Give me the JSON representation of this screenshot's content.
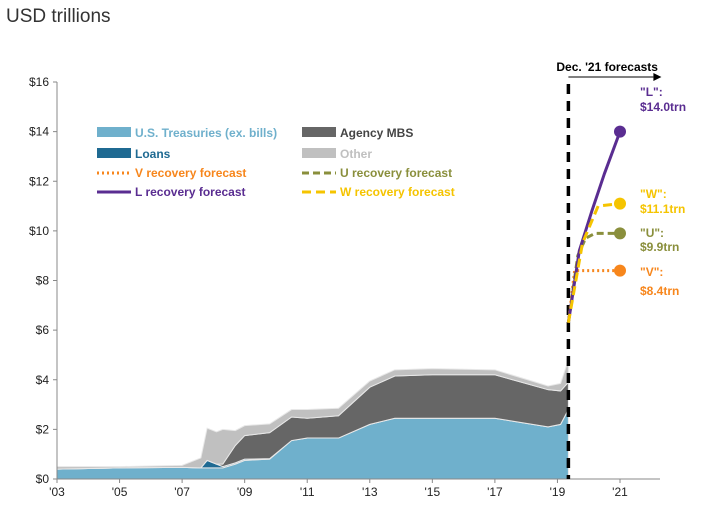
{
  "chart_data": {
    "type": "area",
    "title": "",
    "ylabel": "USD trillions",
    "xlabel": "",
    "ylim": [
      0,
      16
    ],
    "xlim": [
      2003,
      2021
    ],
    "yticks": [
      0,
      2,
      4,
      6,
      8,
      10,
      12,
      14,
      16
    ],
    "ytick_labels": [
      "$0",
      "$2",
      "$4",
      "$6",
      "$8",
      "$10",
      "$12",
      "$14",
      "$16"
    ],
    "xticks": [
      2003,
      2005,
      2007,
      2009,
      2011,
      2013,
      2015,
      2017,
      2019,
      2021
    ],
    "xtick_labels": [
      "'03",
      "'05",
      "'07",
      "'09",
      "'11",
      "'13",
      "'15",
      "'17",
      "'19",
      "'21"
    ],
    "grid": false,
    "legend_placement": "top-left",
    "x": [
      2003,
      2005,
      2007,
      2007.6,
      2007.8,
      2008.1,
      2008.3,
      2008.7,
      2009,
      2009.8,
      2010.5,
      2011,
      2012,
      2013,
      2013.8,
      2015,
      2017,
      2018.7,
      2019.1,
      2019.35
    ],
    "stacked_series": [
      {
        "name": "U.S. Treasuries (ex. bills)",
        "color": "#6fb0cc",
        "values": [
          0.4,
          0.45,
          0.47,
          0.45,
          0.45,
          0.45,
          0.45,
          0.6,
          0.75,
          0.8,
          1.55,
          1.65,
          1.65,
          2.2,
          2.45,
          2.45,
          2.45,
          2.1,
          2.2,
          2.8
        ]
      },
      {
        "name": "Loans",
        "color": "#1f6a92",
        "values": [
          0,
          0,
          0,
          0,
          0.3,
          0.15,
          0.05,
          0.05,
          0.05,
          0.02,
          0,
          0,
          0,
          0,
          0,
          0,
          0,
          0,
          0,
          0
        ]
      },
      {
        "name": "Agency MBS",
        "color": "#666666",
        "values": [
          0,
          0,
          0,
          0,
          0,
          0,
          0.1,
          0.7,
          0.95,
          1.05,
          0.95,
          0.8,
          0.9,
          1.5,
          1.7,
          1.75,
          1.75,
          1.5,
          1.35,
          1.1
        ]
      },
      {
        "name": "Other",
        "color": "#c0c0c0",
        "values": [
          0.1,
          0.05,
          0.08,
          0.4,
          1.3,
          1.3,
          1.4,
          0.6,
          0.4,
          0.35,
          0.3,
          0.35,
          0.3,
          0.25,
          0.25,
          0.25,
          0.2,
          0.15,
          0.3,
          0.9
        ]
      }
    ],
    "forecast_series": [
      {
        "name": "V recovery forecast",
        "color": "#f7861c",
        "dash": "2,3",
        "x": [
          2019.35,
          2019.55,
          2021
        ],
        "values": [
          6.3,
          8.4,
          8.4
        ],
        "end_label_1": "\"V\":",
        "end_label_2": "$8.4trn"
      },
      {
        "name": "U recovery forecast",
        "color": "#8a8f3c",
        "dash": "7,4",
        "x": [
          2019.35,
          2019.65,
          2019.9,
          2020.2,
          2021
        ],
        "values": [
          6.3,
          9.0,
          9.7,
          9.9,
          9.9
        ],
        "end_label_1": "\"U\":",
        "end_label_2": "$9.9trn"
      },
      {
        "name": "L recovery forecast",
        "color": "#5a2d91",
        "dash": "",
        "x": [
          2019.35,
          2019.7,
          2020.1,
          2020.5,
          2021
        ],
        "values": [
          6.3,
          9.2,
          10.8,
          12.3,
          14.0
        ],
        "end_label_1": "\"L\":",
        "end_label_2": "$14.0trn"
      },
      {
        "name": "W recovery forecast",
        "color": "#f5c400",
        "dash": "9,5",
        "x": [
          2019.35,
          2019.8,
          2020.3,
          2021
        ],
        "values": [
          6.3,
          9.5,
          11.0,
          11.1
        ],
        "end_label_1": "\"W\":",
        "end_label_2": "$11.1trn"
      }
    ],
    "forecast_start": 2019.35,
    "annotation": "Dec. '21 forecasts"
  }
}
